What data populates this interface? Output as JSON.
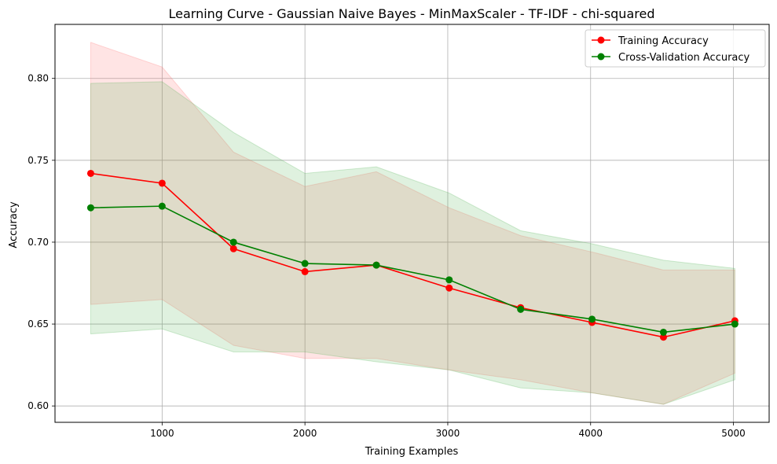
{
  "chart_data": {
    "type": "line",
    "title": "Learning Curve - Gaussian Naive Bayes - MinMaxScaler - TF-IDF - chi-squared",
    "xlabel": "Training Examples",
    "ylabel": "Accuracy",
    "xlim": [
      250,
      5250
    ],
    "ylim": [
      0.59,
      0.833
    ],
    "xticks": [
      1000,
      2000,
      3000,
      4000,
      5000
    ],
    "yticks": [
      0.6,
      0.65,
      0.7,
      0.75,
      0.8
    ],
    "xtick_labels": [
      "1000",
      "2000",
      "3000",
      "4000",
      "5000"
    ],
    "ytick_labels": [
      "0.60",
      "0.65",
      "0.70",
      "0.75",
      "0.80"
    ],
    "grid": true,
    "legend_position": "top-right",
    "x": [
      500,
      1000,
      1500,
      2000,
      2500,
      3010,
      3510,
      4010,
      4510,
      5010
    ],
    "series": [
      {
        "name": "Training Accuracy",
        "color": "#ff0000",
        "band_color": "#ff6b6b",
        "values": [
          0.742,
          0.736,
          0.696,
          0.682,
          0.686,
          0.672,
          0.66,
          0.651,
          0.642,
          0.652
        ],
        "upper": [
          0.822,
          0.807,
          0.755,
          0.734,
          0.743,
          0.721,
          0.704,
          0.694,
          0.683,
          0.683
        ],
        "lower": [
          0.662,
          0.665,
          0.637,
          0.629,
          0.629,
          0.622,
          0.616,
          0.608,
          0.601,
          0.62
        ]
      },
      {
        "name": "Cross-Validation Accuracy",
        "color": "#008000",
        "band_color": "#4caf50",
        "values": [
          0.721,
          0.722,
          0.7,
          0.687,
          0.686,
          0.677,
          0.659,
          0.653,
          0.645,
          0.65
        ],
        "upper": [
          0.797,
          0.798,
          0.767,
          0.742,
          0.746,
          0.73,
          0.707,
          0.699,
          0.689,
          0.684
        ],
        "lower": [
          0.644,
          0.647,
          0.633,
          0.633,
          0.627,
          0.622,
          0.611,
          0.608,
          0.601,
          0.616
        ]
      }
    ]
  }
}
